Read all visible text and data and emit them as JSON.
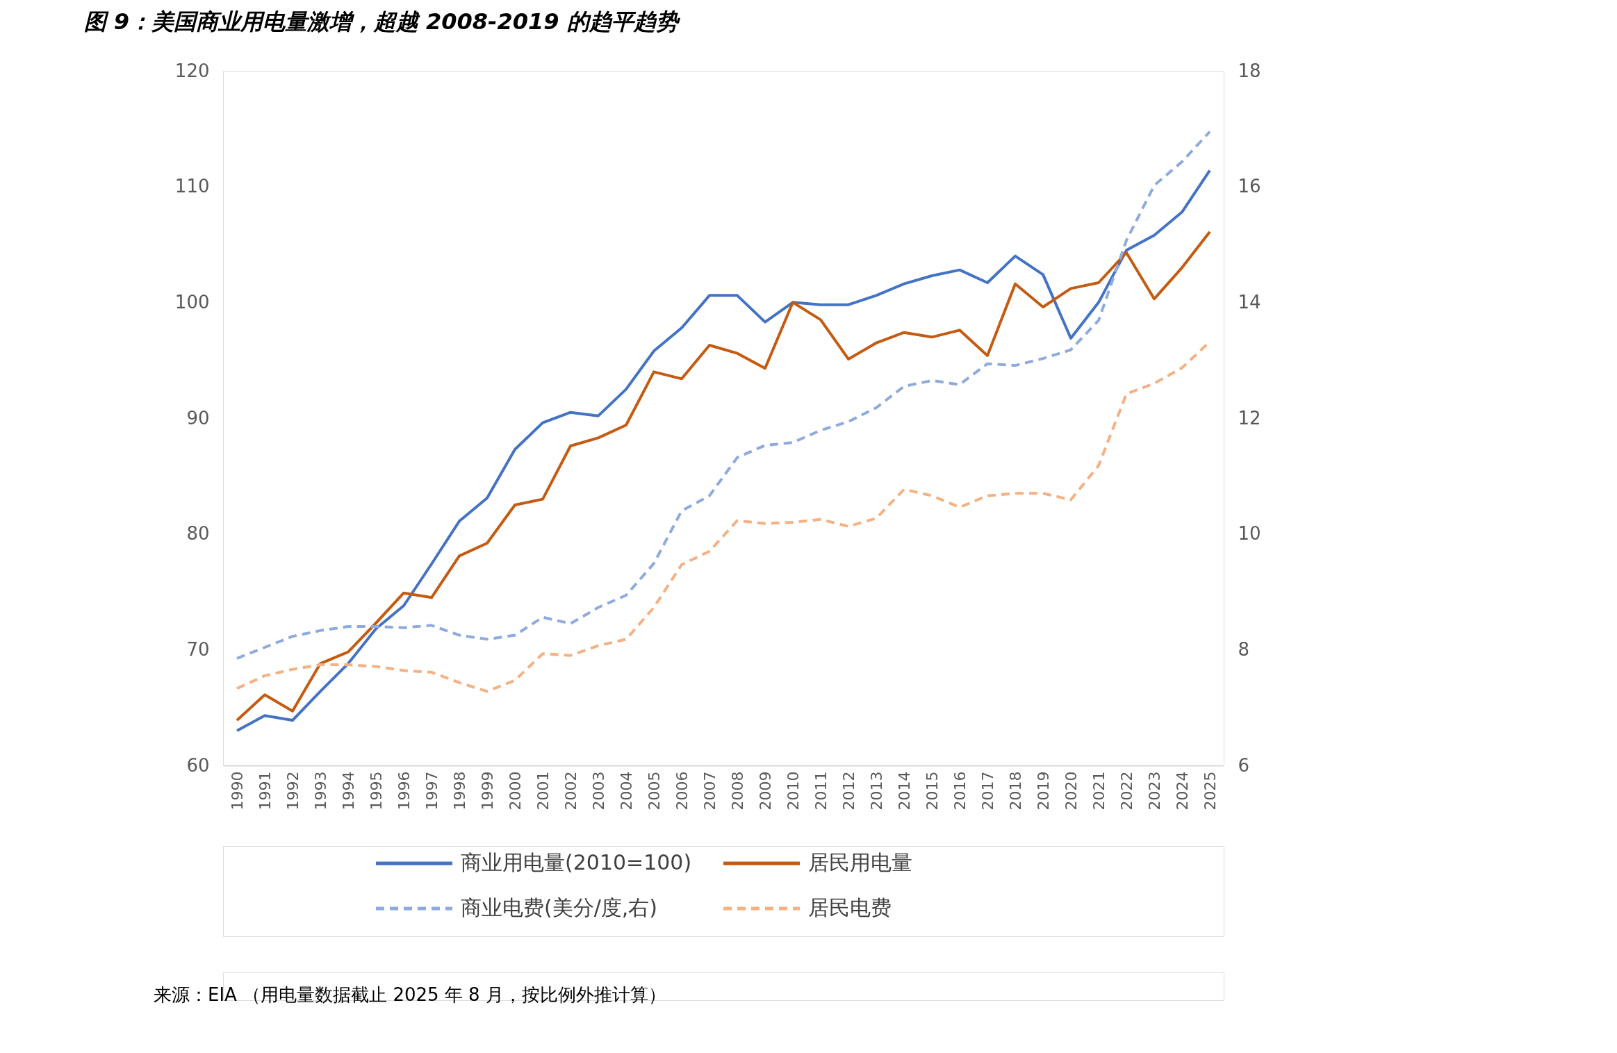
{
  "chart_data": {
    "type": "line",
    "title": "图 9：美国商业用电量激增，超越 2008-2019 的趋平趋势",
    "categories": [
      "1990",
      "1991",
      "1992",
      "1993",
      "1994",
      "1995",
      "1996",
      "1997",
      "1998",
      "1999",
      "2000",
      "2001",
      "2002",
      "2003",
      "2004",
      "2005",
      "2006",
      "2007",
      "2008",
      "2009",
      "2010",
      "2011",
      "2012",
      "2013",
      "2014",
      "2015",
      "2016",
      "2017",
      "2018",
      "2019",
      "2020",
      "2021",
      "2022",
      "2023",
      "2024",
      "2025"
    ],
    "series": [
      {
        "name": "商业用电量(2010=100)",
        "color": "#4472c4",
        "line_style": "solid",
        "values": [
          63.0,
          64.3,
          63.9,
          66.4,
          68.8,
          71.8,
          73.8,
          77.4,
          81.1,
          83.1,
          87.3,
          89.6,
          90.5,
          90.2,
          92.5,
          95.8,
          97.8,
          100.6,
          100.6,
          98.3,
          100.0,
          99.8,
          99.8,
          100.6,
          101.6,
          102.3,
          102.8,
          101.7,
          104.0,
          102.4,
          96.9,
          100.0,
          104.5,
          105.8,
          107.8,
          111.4
        ]
      },
      {
        "name": "居民用电量",
        "color": "#c55a11",
        "line_style": "solid",
        "values": [
          63.9,
          66.1,
          64.7,
          68.8,
          69.8,
          72.3,
          74.9,
          74.5,
          78.1,
          79.2,
          82.5,
          83.0,
          87.6,
          88.3,
          89.4,
          94.0,
          93.4,
          96.3,
          95.6,
          94.3,
          100.0,
          98.5,
          95.1,
          96.5,
          97.4,
          97.0,
          97.6,
          95.4,
          101.6,
          99.6,
          101.2,
          101.7,
          104.3,
          100.3,
          103.0,
          106.1
        ]
      },
      {
        "name": "商业电费(美分/度,右)",
        "color": "#8faadc",
        "line_style": "dashed",
        "axis": "y2",
        "values": [
          7.85,
          8.04,
          8.23,
          8.33,
          8.4,
          8.4,
          8.38,
          8.42,
          8.25,
          8.18,
          8.25,
          8.56,
          8.45,
          8.73,
          8.94,
          9.49,
          10.4,
          10.66,
          11.32,
          11.53,
          11.58,
          11.79,
          11.94,
          12.18,
          12.55,
          12.65,
          12.58,
          12.94,
          12.91,
          13.03,
          13.18,
          13.69,
          15.07,
          16.02,
          16.43,
          16.95
        ]
      },
      {
        "name": "居民电费",
        "color": "#f4b183",
        "line_style": "dashed",
        "axis": "y2",
        "values": [
          7.33,
          7.55,
          7.66,
          7.74,
          7.74,
          7.71,
          7.64,
          7.61,
          7.43,
          7.28,
          7.47,
          7.93,
          7.9,
          8.07,
          8.18,
          8.73,
          9.47,
          9.7,
          10.23,
          10.18,
          10.2,
          10.25,
          10.13,
          10.27,
          10.77,
          10.66,
          10.46,
          10.66,
          10.7,
          10.7,
          10.59,
          11.18,
          12.42,
          12.6,
          12.87,
          13.32
        ]
      }
    ],
    "ylim": [
      60,
      120
    ],
    "yticks": [
      60,
      70,
      80,
      90,
      100,
      110,
      120
    ],
    "y2lim": [
      6,
      18
    ],
    "y2ticks": [
      6,
      8,
      10,
      12,
      14,
      16,
      18
    ],
    "grid": false,
    "legend": "bottom",
    "annotations": [
      "来源：EIA （用电量数据截止 2025 年 8 月，按比例外推计算）"
    ]
  }
}
